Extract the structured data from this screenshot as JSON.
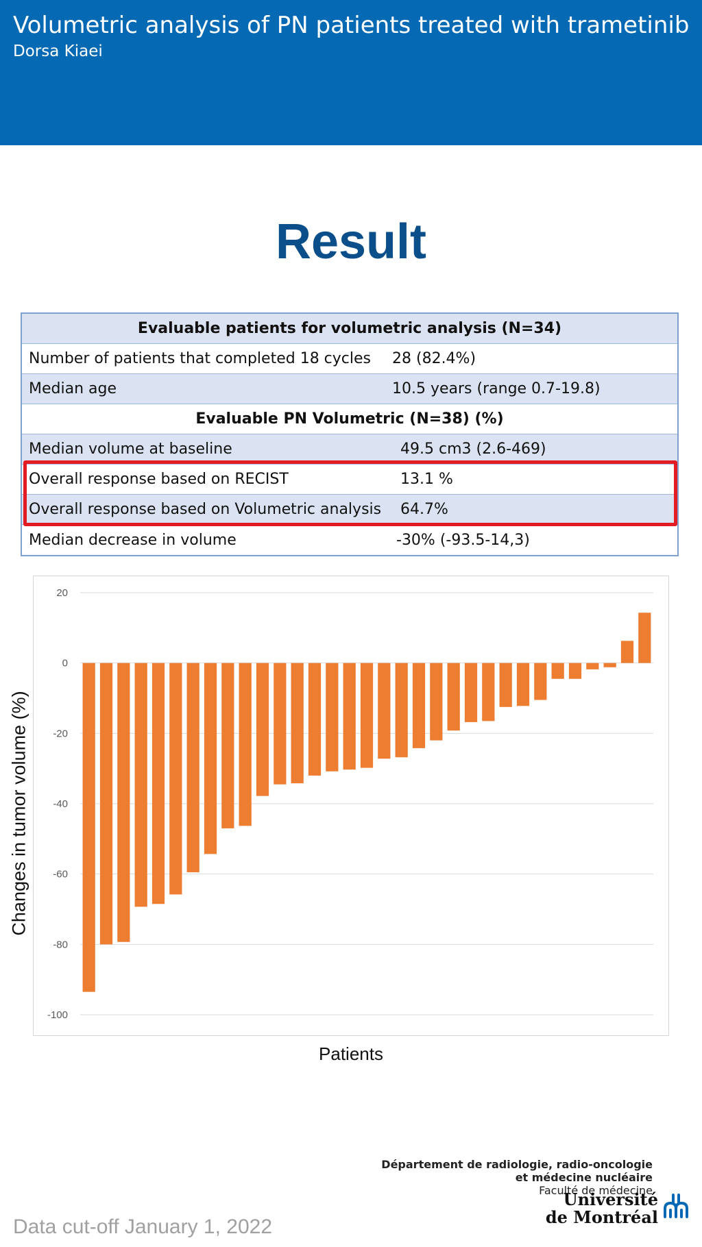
{
  "header": {
    "title": "Volumetric analysis of PN patients treated with trametinib",
    "author": "Dorsa Kiaei"
  },
  "section_title": "Result",
  "table": {
    "rows": [
      {
        "type": "header",
        "label": "Evaluable patients for volumetric analysis (N=34)",
        "value": ""
      },
      {
        "type": "data",
        "label": "Number of patients that completed 18 cycles",
        "value": "28 (82.4%)"
      },
      {
        "type": "data",
        "label": "Median age",
        "value": "10.5 years (range 0.7-19.8)"
      },
      {
        "type": "header",
        "label": "Evaluable PN Volumetric (N=38)  (%)",
        "value": ""
      },
      {
        "type": "data",
        "label": "Median volume at baseline",
        "value": "49.5 cm3 (2.6-469)"
      },
      {
        "type": "data",
        "label": "Overall response based on RECIST",
        "value": "13.1 %"
      },
      {
        "type": "data",
        "label": "Overall response based on Volumetric analysis",
        "value": "64.7%"
      },
      {
        "type": "data",
        "label": "Median decrease in volume",
        "value": "-30% (-93.5-14,3)"
      }
    ],
    "highlight_color": "#e31b23"
  },
  "chart_data": {
    "type": "bar",
    "title": "",
    "xlabel": "Patients",
    "ylabel": "Changes in tumor volume (%)",
    "ylim": [
      -100,
      20
    ],
    "yticks": [
      "20",
      "0",
      "-20",
      "-40",
      "-60",
      "-80",
      "-100"
    ],
    "grid": true,
    "bar_color": "#ed7d31",
    "values": [
      -93.5,
      -80,
      -79.3,
      -69.3,
      -68.5,
      -65.8,
      -59.5,
      -54.3,
      -47,
      -46.3,
      -37.8,
      -34.5,
      -34.2,
      -32,
      -30.8,
      -30.3,
      -29.8,
      -27.2,
      -26.8,
      -24.2,
      -22,
      -19.2,
      -16.8,
      -16.5,
      -12.5,
      -12.2,
      -10.5,
      -4.5,
      -4.5,
      -1.8,
      -1.2,
      6.3,
      14.3
    ]
  },
  "footer": {
    "data_cutoff": "Data cut-off January 1, 2022",
    "department_line1": "Département de radiologie, radio-oncologie",
    "department_line2": "et médecine nucléaire",
    "faculty": "Faculté de médecine",
    "university_line1": "Université",
    "university_line2": "de Montréal",
    "logo_color": "#0569b4"
  }
}
